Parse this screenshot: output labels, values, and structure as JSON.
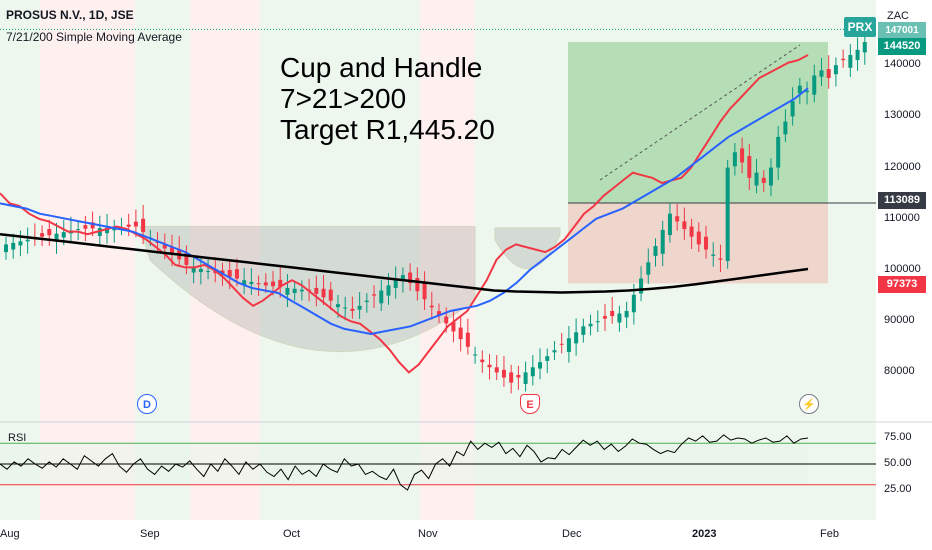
{
  "header": {
    "title": "PROSUS N.V., 1D, JSE",
    "subtitle": "7/21/200 Simple Moving Average",
    "currency": "ZAC",
    "badge": "PRX"
  },
  "annotation": {
    "line1": "Cup and Handle",
    "line2": "7>21>200",
    "line3": "Target R1,445.20"
  },
  "price_labels": {
    "last": "144520",
    "level_mid": "113089",
    "level_low": "97373",
    "level_high": "147001",
    "last_color": "#089981",
    "mid_color": "#363a45",
    "low_color": "#f23645"
  },
  "markers": {
    "dividend": "D",
    "earnings": "E"
  },
  "chart_data": {
    "type": "candlestick",
    "x_ticks": [
      "Aug",
      "Sep",
      "Oct",
      "Nov",
      "Dec",
      "2023",
      "Feb"
    ],
    "y_ticks": [
      80000,
      90000,
      100000,
      110000,
      120000,
      130000,
      140000
    ],
    "ylim": [
      73000,
      150000
    ],
    "rsi": {
      "label": "RSI",
      "ticks": [
        25.0,
        50.0,
        75.0
      ],
      "overbought": 70,
      "oversold": 30,
      "values": [
        50,
        45,
        52,
        48,
        55,
        50,
        46,
        52,
        47,
        55,
        50,
        45,
        58,
        53,
        48,
        55,
        60,
        48,
        42,
        50,
        55,
        45,
        40,
        48,
        43,
        50,
        47,
        53,
        45,
        38,
        50,
        43,
        55,
        48,
        40,
        52,
        45,
        50,
        42,
        38,
        45,
        35,
        48,
        40,
        44,
        38,
        50,
        45,
        42,
        55,
        48,
        50,
        40,
        43,
        38,
        35,
        45,
        30,
        25,
        40,
        44,
        36,
        50,
        55,
        48,
        62,
        58,
        72,
        64,
        70,
        66,
        71,
        60,
        65,
        57,
        68,
        62,
        52,
        56,
        55,
        64,
        59,
        66,
        73,
        68,
        72,
        64,
        69,
        62,
        67,
        74,
        70,
        69,
        64,
        60,
        63,
        61,
        69,
        75,
        72,
        77,
        71,
        72,
        78,
        73,
        75,
        74,
        70,
        73,
        75,
        71,
        72,
        77,
        70,
        74,
        75
      ]
    },
    "sma": [
      {
        "name": "7",
        "color": "#f23645",
        "values": [
          115000,
          113000,
          112500,
          111000,
          110000,
          109500,
          108500,
          107500,
          107500,
          107000,
          107500,
          108000,
          108500,
          108000,
          107000,
          106000,
          104500,
          103000,
          101000,
          100500,
          100500,
          101000,
          100000,
          98500,
          96500,
          94500,
          93000,
          94000,
          95500,
          97000,
          98000,
          97000,
          95500,
          94000,
          92500,
          91000,
          90000,
          89500,
          88000,
          86500,
          84500,
          82000,
          80000,
          81500,
          84000,
          86500,
          89000,
          90500,
          92000,
          95000,
          98000,
          102000,
          104000,
          105000,
          104500,
          104000,
          103500,
          104500,
          106000,
          108500,
          111000,
          112500,
          114500,
          116000,
          117500,
          119000,
          118500,
          118000,
          117000,
          117500,
          118000,
          120000,
          123000,
          126000,
          129000,
          131500,
          133500,
          135500,
          137500,
          138500,
          139500,
          140500,
          141000,
          142000
        ]
      },
      {
        "name": "21",
        "color": "#2962ff",
        "values": [
          113000,
          112500,
          112000,
          111000,
          110500,
          110000,
          109500,
          109000,
          108500,
          108000,
          107500,
          106500,
          105500,
          104500,
          103500,
          102000,
          100500,
          99000,
          97500,
          96500,
          96000,
          95500,
          94000,
          92500,
          91000,
          89500,
          88500,
          88000,
          87500,
          88000,
          88500,
          89000,
          90000,
          91000,
          92000,
          92500,
          93000,
          94000,
          95500,
          97500,
          100000,
          102000,
          104000,
          106000,
          108000,
          110000,
          111000,
          112000,
          113500,
          115000,
          116500,
          118000,
          120000,
          122000,
          124000,
          126000,
          127500,
          129000,
          130500,
          132000,
          133500,
          135500
        ]
      },
      {
        "name": "200",
        "color": "#000000",
        "values": [
          107000,
          106500,
          106000,
          105500,
          105000,
          104500,
          104000,
          103500,
          103000,
          102500,
          102000,
          101500,
          101000,
          100500,
          100000,
          99500,
          99000,
          98500,
          98000,
          97500,
          97000,
          96500,
          96000,
          95800,
          95700,
          95600,
          95700,
          95800,
          96000,
          96300,
          96700,
          97200,
          97800,
          98400,
          99000,
          99600,
          100200
        ]
      }
    ],
    "cup": {
      "rim_price": 108500,
      "bottom_price": 76500
    },
    "target_zone": {
      "top": 144520,
      "entry": 113089,
      "stop": 97373
    }
  }
}
